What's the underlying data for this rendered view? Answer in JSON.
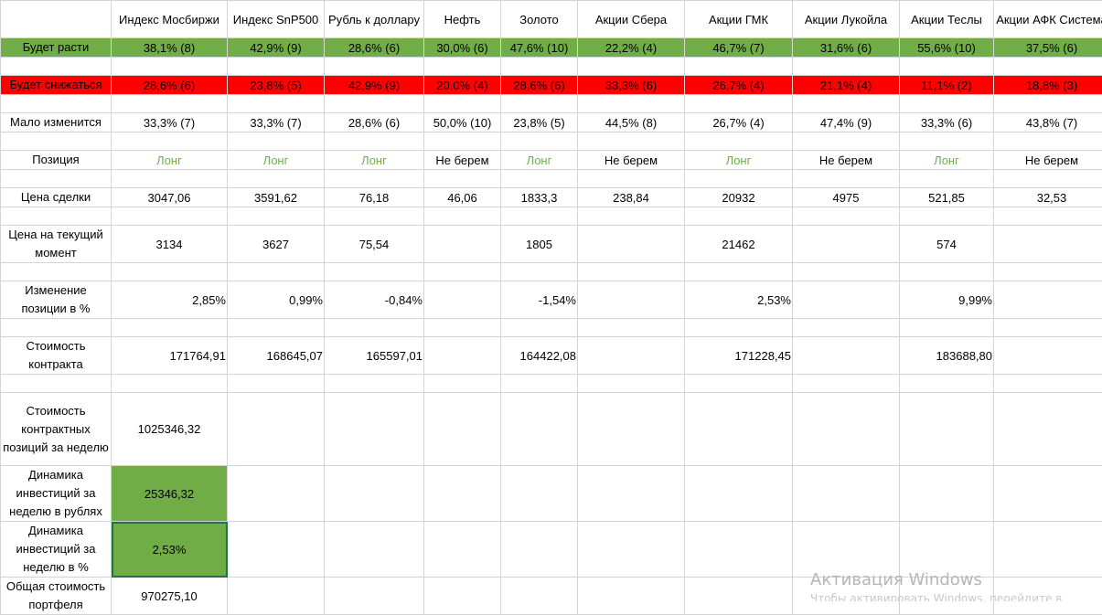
{
  "headers": [
    "",
    "Индекс Мосбиржи",
    "Индекс SnP500",
    "Рубль к доллару",
    "Нефть",
    "Золото",
    "Акции Сбера",
    "Акции ГМК",
    "Акции  Лукойла",
    "Акции Теслы",
    "Акции АФК Система"
  ],
  "rows": {
    "grow": {
      "label": "Будет расти",
      "values": [
        "38,1% (8)",
        "42,9% (9)",
        "28,6% (6)",
        "30,0% (6)",
        "47,6% (10)",
        "22,2% (4)",
        "46,7% (7)",
        "31,6% (6)",
        "55,6% (10)",
        "37,5% (6)"
      ]
    },
    "fall": {
      "label": "Будет снижаться",
      "values": [
        "28,6% (6)",
        "23,8% (5)",
        "42,9% (9)",
        "20,0% (4)",
        "28,6% (6)",
        "33,3% (6)",
        "26,7% (4)",
        "21,1% (4)",
        "11,1% (2)",
        "18,8% (3)"
      ]
    },
    "flat": {
      "label": "Мало изменится",
      "values": [
        "33,3% (7)",
        "33,3% (7)",
        "28,6% (6)",
        "50,0% (10)",
        "23,8% (5)",
        "44,5% (8)",
        "26,7% (4)",
        "47,4% (9)",
        "33,3% (6)",
        "43,8% (7)"
      ]
    },
    "position": {
      "label": "Позиция",
      "values": [
        "Лонг",
        "Лонг",
        "Лонг",
        "Не берем",
        "Лонг",
        "Не берем",
        "Лонг",
        "Не берем",
        "Лонг",
        "Не берем"
      ]
    },
    "deal_price": {
      "label": "Цена сделки",
      "values": [
        "3047,06",
        "3591,62",
        "76,18",
        "46,06",
        "1833,3",
        "238,84",
        "20932",
        "4975",
        "521,85",
        "32,53"
      ]
    },
    "current_price": {
      "label": "Цена на текущий момент",
      "values": [
        "3134",
        "3627",
        "75,54",
        "",
        "1805",
        "",
        "21462",
        "",
        "574",
        ""
      ]
    },
    "change": {
      "label": "Изменение позиции в %",
      "values": [
        "2,85%",
        "0,99%",
        "-0,84%",
        "",
        "-1,54%",
        "",
        "2,53%",
        "",
        "9,99%",
        ""
      ]
    },
    "contract_cost": {
      "label": "Стоимость контракта",
      "values": [
        "171764,91",
        "168645,07",
        "165597,01",
        "",
        "164422,08",
        "",
        "171228,45",
        "",
        "183688,80",
        ""
      ]
    },
    "total_contracts": {
      "label": "Стоимость контрактных позиций за неделю",
      "value": "1025346,32"
    },
    "dyn_rub": {
      "label": "Динамика инвестиций за неделю в рублях",
      "value": "25346,32"
    },
    "dyn_pct": {
      "label": "Динамика инвестиций за неделю в %",
      "value": "2,53%"
    },
    "portfolio": {
      "label": "Общая стоимость портфеля",
      "value": "970275,10"
    }
  },
  "colors": {
    "green": "#70ad47",
    "red": "#ff0000",
    "grid": "#d4d4d4",
    "selection": "#217346"
  },
  "watermark": {
    "title": "Активация Windows",
    "subtitle": "Чтобы активировать Windows, перейдите в"
  }
}
